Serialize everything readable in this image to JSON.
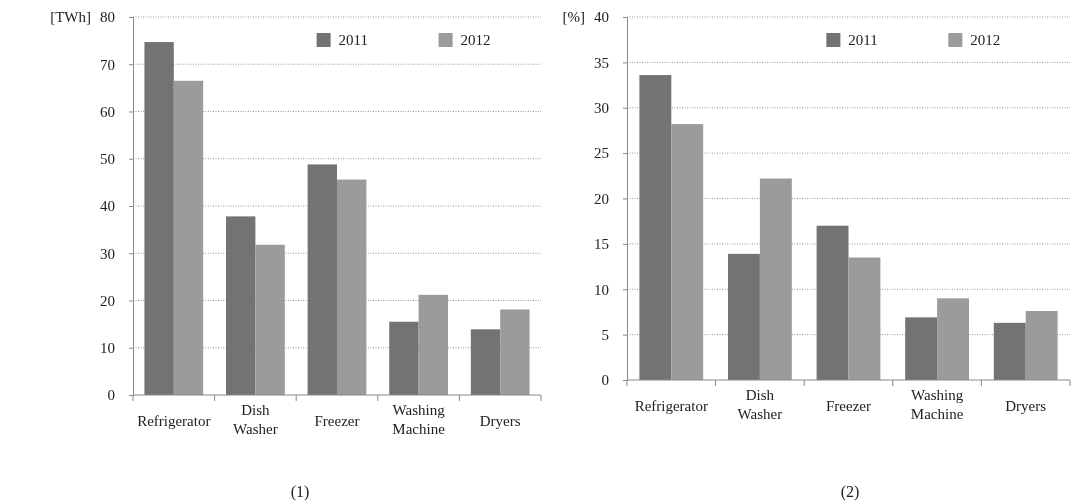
{
  "chart_data": [
    {
      "type": "bar",
      "ylabel": "[TWh]",
      "categories": [
        "Refrigerator",
        "Dish Washer",
        "Freezer",
        "Washing Machine",
        "Dryers"
      ],
      "series": [
        {
          "name": "2011",
          "color": "#737373",
          "values": [
            74.7,
            37.8,
            48.8,
            15.5,
            13.9
          ]
        },
        {
          "name": "2012",
          "color": "#9b9b9b",
          "values": [
            66.5,
            31.8,
            45.6,
            21.2,
            18.1
          ]
        }
      ],
      "ylim": [
        0,
        80
      ],
      "yticks": [
        0,
        10,
        20,
        30,
        40,
        50,
        60,
        70,
        80
      ],
      "grid": "y",
      "legend": "top right",
      "annotations": [
        "(1)"
      ]
    },
    {
      "type": "bar",
      "ylabel": "[%]",
      "categories": [
        "Refrigerator",
        "Dish Washer",
        "Freezer",
        "Washing Machine",
        "Dryers"
      ],
      "series": [
        {
          "name": "2011",
          "color": "#737373",
          "values": [
            33.6,
            13.9,
            17.0,
            6.9,
            6.3
          ]
        },
        {
          "name": "2012",
          "color": "#9b9b9b",
          "values": [
            28.2,
            22.2,
            13.5,
            9.0,
            7.6
          ]
        }
      ],
      "ylim": [
        0,
        40
      ],
      "yticks": [
        0,
        5,
        10,
        15,
        20,
        25,
        30,
        35,
        40
      ],
      "grid": "y",
      "legend": "top right",
      "annotations": [
        "(2)"
      ]
    }
  ]
}
